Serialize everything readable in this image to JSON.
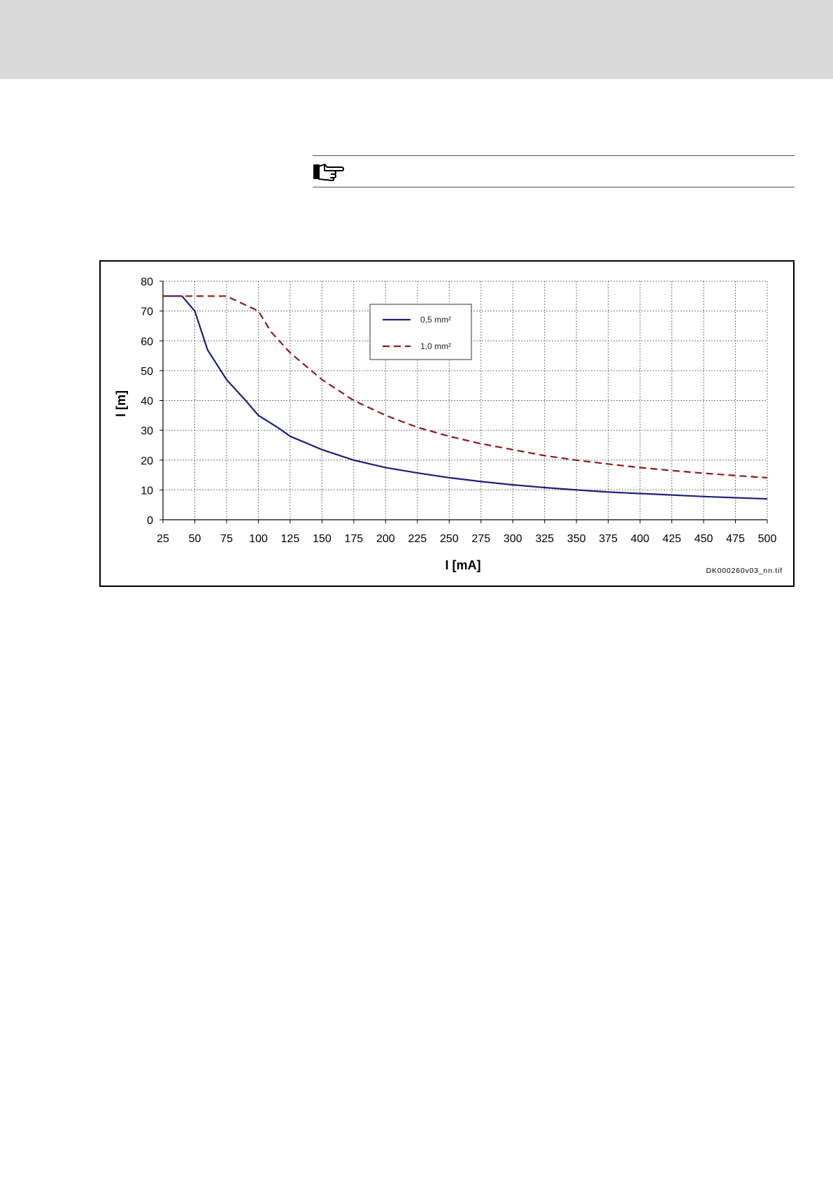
{
  "figure": {
    "file_label": "DK000260v03_nn.tif"
  },
  "note": {
    "icon": "pointing-hand-icon"
  },
  "chart_data": {
    "type": "line",
    "xlabel": "I [mA]",
    "ylabel": "l [m]",
    "xlim": [
      25,
      500
    ],
    "ylim": [
      0,
      80
    ],
    "x_ticks": [
      "25",
      "50",
      "75",
      "100",
      "125",
      "150",
      "175",
      "200",
      "225",
      "250",
      "275",
      "300",
      "325",
      "350",
      "375",
      "400",
      "425",
      "450",
      "475",
      "500"
    ],
    "y_ticks": [
      "0",
      "10",
      "20",
      "30",
      "40",
      "50",
      "60",
      "70",
      "80"
    ],
    "grid": true,
    "legend_position": "top-center",
    "series": [
      {
        "name": "0,5 mm²",
        "color": "#1f1f7a",
        "style": "solid",
        "x": [
          25,
          40,
          50,
          60,
          75,
          90,
          100,
          115,
          125,
          150,
          175,
          200,
          225,
          250,
          275,
          300,
          325,
          350,
          375,
          400,
          425,
          450,
          475,
          500
        ],
        "y": [
          75,
          75,
          70,
          57,
          47,
          40,
          35,
          31,
          28,
          23.5,
          20,
          17.5,
          15.7,
          14.1,
          12.8,
          11.7,
          10.8,
          10.0,
          9.3,
          8.8,
          8.3,
          7.8,
          7.4,
          7.0
        ]
      },
      {
        "name": "1,0 mm²",
        "color": "#8b1a1a",
        "style": "dashed",
        "x": [
          25,
          50,
          75,
          90,
          100,
          110,
          125,
          150,
          175,
          200,
          225,
          250,
          275,
          300,
          325,
          350,
          375,
          400,
          425,
          450,
          475,
          500
        ],
        "y": [
          75,
          75,
          75,
          72,
          70,
          63,
          56,
          47,
          40,
          35,
          31,
          28,
          25.5,
          23.5,
          21.5,
          20,
          18.7,
          17.5,
          16.5,
          15.6,
          14.8,
          14.1
        ]
      }
    ]
  }
}
